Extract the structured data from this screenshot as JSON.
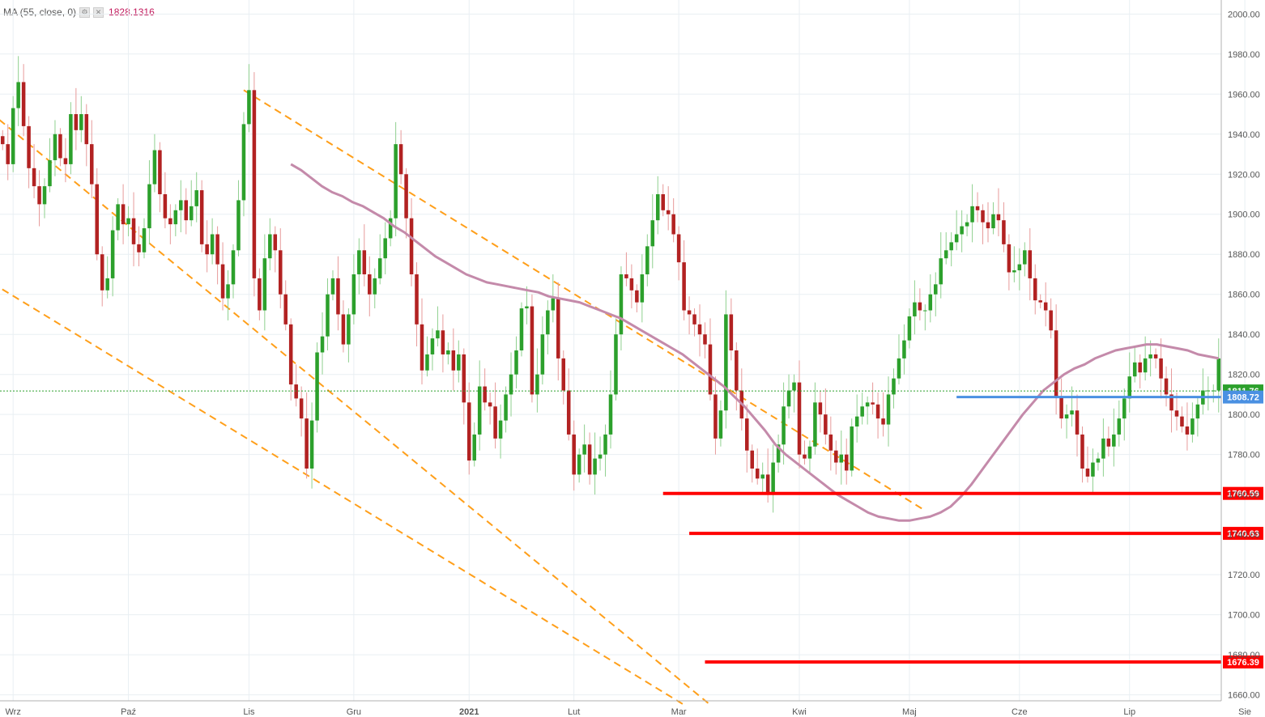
{
  "indicator": {
    "label": "MA (55, close, 0)",
    "value": "1828.1316",
    "settings_icon": "gear-icon",
    "close_icon": "close-icon"
  },
  "chart_data": {
    "type": "candlestick",
    "title": "",
    "ylim": [
      1657,
      2007
    ],
    "y_ticks": [
      "1660.00",
      "1680.00",
      "1700.00",
      "1720.00",
      "1740.00",
      "1760.00",
      "1780.00",
      "1800.00",
      "1820.00",
      "1840.00",
      "1860.00",
      "1880.00",
      "1900.00",
      "1920.00",
      "1940.00",
      "1960.00",
      "1980.00",
      "2000.00"
    ],
    "x_ticks": [
      {
        "label": "Wrz",
        "index": 2
      },
      {
        "label": "Paź",
        "index": 24
      },
      {
        "label": "Lis",
        "index": 47
      },
      {
        "label": "Gru",
        "index": 67
      },
      {
        "label": "2021",
        "index": 89
      },
      {
        "label": "Lut",
        "index": 109
      },
      {
        "label": "Mar",
        "index": 129
      },
      {
        "label": "Kwi",
        "index": 152
      },
      {
        "label": "Maj",
        "index": 173
      },
      {
        "label": "Cze",
        "index": 194
      },
      {
        "label": "Lip",
        "index": 215
      },
      {
        "label": "Sie",
        "index": 237
      }
    ],
    "closes": [
      1935,
      1925,
      1953,
      1966,
      1944,
      1923,
      1914,
      1905,
      1914,
      1927,
      1940,
      1928,
      1925,
      1950,
      1942,
      1950,
      1935,
      1915,
      1880,
      1862,
      1868,
      1892,
      1905,
      1895,
      1898,
      1885,
      1881,
      1893,
      1915,
      1932,
      1910,
      1898,
      1895,
      1902,
      1907,
      1897,
      1904,
      1912,
      1885,
      1880,
      1890,
      1875,
      1858,
      1865,
      1882,
      1907,
      1945,
      1962,
      1868,
      1852,
      1878,
      1890,
      1882,
      1860,
      1845,
      1815,
      1808,
      1798,
      1773,
      1797,
      1831,
      1839,
      1860,
      1868,
      1850,
      1835,
      1850,
      1870,
      1882,
      1870,
      1860,
      1868,
      1878,
      1888,
      1898,
      1935,
      1920,
      1898,
      1870,
      1845,
      1822,
      1830,
      1838,
      1842,
      1830,
      1832,
      1822,
      1830,
      1806,
      1777,
      1790,
      1814,
      1806,
      1804,
      1788,
      1797,
      1810,
      1820,
      1832,
      1853,
      1854,
      1810,
      1820,
      1840,
      1852,
      1858,
      1828,
      1812,
      1790,
      1770,
      1780,
      1785,
      1770,
      1778,
      1780,
      1790,
      1810,
      1840,
      1870,
      1868,
      1862,
      1856,
      1870,
      1884,
      1897,
      1910,
      1902,
      1900,
      1890,
      1876,
      1852,
      1850,
      1845,
      1840,
      1835,
      1810,
      1788,
      1802,
      1850,
      1832,
      1812,
      1798,
      1782,
      1773,
      1768,
      1770,
      1760,
      1776,
      1785,
      1804,
      1812,
      1816,
      1780,
      1778,
      1784,
      1806,
      1800,
      1790,
      1782,
      1776,
      1780,
      1772,
      1794,
      1799,
      1804,
      1806,
      1805,
      1798,
      1795,
      1810,
      1818,
      1828,
      1837,
      1849,
      1856,
      1852,
      1852,
      1860,
      1865,
      1878,
      1882,
      1886,
      1890,
      1894,
      1896,
      1904,
      1902,
      1896,
      1893,
      1900,
      1897,
      1885,
      1871,
      1872,
      1875,
      1882,
      1868,
      1857,
      1856,
      1852,
      1842,
      1809,
      1798,
      1800,
      1802,
      1790,
      1773,
      1769,
      1776,
      1778,
      1788,
      1784,
      1790,
      1798,
      1808,
      1819,
      1826,
      1821,
      1828,
      1830,
      1828,
      1818,
      1810,
      1802,
      1799,
      1794,
      1790,
      1798,
      1805,
      1812,
      1812,
      1812,
      1828
    ],
    "ma_55": [
      1925,
      1922,
      1918,
      1914,
      1911,
      1909,
      1906,
      1904,
      1901,
      1898,
      1894,
      1891,
      1887,
      1883,
      1879,
      1876,
      1873,
      1870,
      1868,
      1866,
      1865,
      1864,
      1863,
      1862,
      1861,
      1859,
      1858,
      1857,
      1856,
      1854,
      1852,
      1850,
      1848,
      1845,
      1842,
      1839,
      1836,
      1833,
      1830,
      1826,
      1822,
      1818,
      1814,
      1809,
      1804,
      1798,
      1792,
      1785,
      1780,
      1776,
      1772,
      1768,
      1764,
      1760,
      1757,
      1754,
      1751,
      1749,
      1748,
      1747,
      1747,
      1748,
      1749,
      1751,
      1754,
      1759,
      1765,
      1772,
      1779,
      1786,
      1793,
      1800,
      1806,
      1812,
      1816,
      1820,
      1823,
      1825,
      1828,
      1830,
      1832,
      1833,
      1834,
      1835,
      1835,
      1834,
      1833,
      1832,
      1830,
      1829,
      1828
    ]
  },
  "levels": [
    {
      "label": "1811.76",
      "value": 1811.76,
      "color": "#2ca02c",
      "style": "dotted"
    },
    {
      "label": "1808.72",
      "value": 1808.72,
      "color": "#4a90e2",
      "style": "solid"
    },
    {
      "label": "1760.59",
      "value": 1760.59,
      "color": "#ff0000",
      "style": "solid"
    },
    {
      "label": "1740.63",
      "value": 1740.63,
      "color": "#ff0000",
      "style": "solid"
    },
    {
      "label": "1676.39",
      "value": 1676.39,
      "color": "#ff0000",
      "style": "solid"
    }
  ],
  "colors": {
    "up": "#2ca02c",
    "down": "#b22222",
    "ma": "#c48aaa",
    "trend": "#ff9f1a",
    "grid": "#e9eff3"
  }
}
